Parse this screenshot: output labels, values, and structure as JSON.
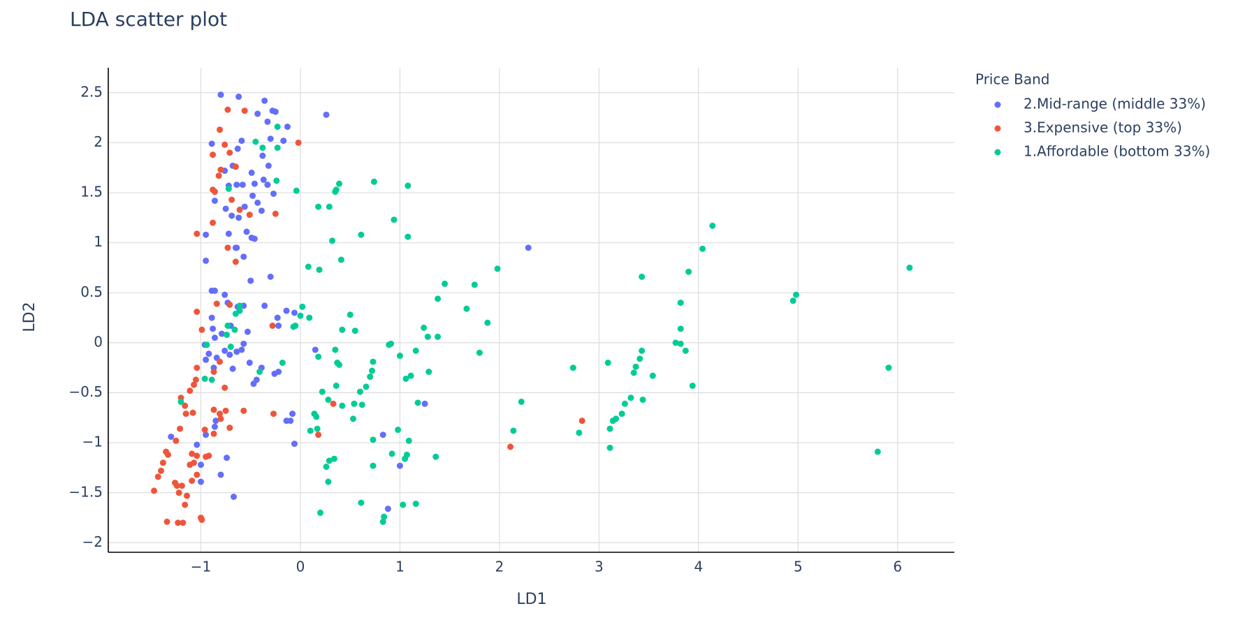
{
  "chart_data": {
    "type": "scatter",
    "title": "LDA scatter plot",
    "xaxis_title": "LD1",
    "yaxis_title": "LD2",
    "legend_title": "Price Band",
    "legend_position": "right",
    "grid": true,
    "xlim": [
      -1.93,
      6.57
    ],
    "ylim": [
      -2.095,
      2.75
    ],
    "xticks": [
      {
        "value": -1,
        "label": "−1"
      },
      0,
      1,
      2,
      3,
      4,
      5,
      6
    ],
    "yticks": [
      {
        "value": -2,
        "label": "−2"
      },
      {
        "value": -1.5,
        "label": "−1.5"
      },
      {
        "value": -1,
        "label": "−1"
      },
      {
        "value": -0.5,
        "label": "−0.5"
      },
      0,
      0.5,
      1,
      1.5,
      2,
      2.5
    ],
    "series": [
      {
        "name": "2.Mid-range (middle 33%)",
        "color": "#636efa",
        "x": [
          -0.8,
          -0.62,
          -0.36,
          -0.28,
          -0.25,
          0.26,
          -0.43,
          -0.33,
          -0.13,
          -0.89,
          -0.59,
          -0.63,
          -0.3,
          -0.17,
          -0.38,
          -0.32,
          -0.49,
          -0.68,
          -0.76,
          -0.72,
          -0.64,
          -0.58,
          -0.46,
          -0.37,
          -0.33,
          -0.27,
          -0.48,
          -0.56,
          -0.43,
          -0.39,
          -0.86,
          -0.75,
          -0.69,
          -0.62,
          -0.54,
          -0.49,
          -0.46,
          -0.95,
          -0.72,
          -0.65,
          -0.64,
          -0.57,
          -0.95,
          -0.3,
          -0.5,
          2.29,
          -0.89,
          -0.86,
          -0.76,
          -0.73,
          -0.63,
          -0.57,
          -0.36,
          -0.14,
          -0.06,
          -0.23,
          -0.22,
          -0.89,
          -0.88,
          -0.7,
          -0.53,
          -0.79,
          -0.86,
          -0.57,
          -0.96,
          -0.92,
          -0.76,
          -0.64,
          -0.59,
          -0.71,
          -0.95,
          -0.84,
          -0.87,
          -0.68,
          -0.51,
          -0.39,
          -0.44,
          -0.47,
          -0.26,
          -0.22,
          0.15,
          -0.08,
          -0.14,
          -0.1,
          -0.06,
          -0.85,
          -0.86,
          -0.95,
          -1.3,
          -1.04,
          -1.0,
          -1.0,
          -0.8,
          -0.74,
          -0.67,
          0.83,
          0.88,
          1.0,
          1.25
        ],
        "y": [
          2.48,
          2.46,
          2.42,
          2.32,
          2.31,
          2.28,
          2.29,
          2.21,
          2.16,
          1.99,
          2.02,
          1.94,
          2.04,
          2.02,
          1.87,
          1.77,
          1.7,
          1.77,
          1.72,
          1.57,
          1.58,
          1.58,
          1.59,
          1.63,
          1.58,
          1.49,
          1.47,
          1.36,
          1.4,
          1.32,
          1.42,
          1.34,
          1.27,
          1.25,
          1.11,
          1.05,
          1.04,
          1.08,
          1.09,
          0.95,
          0.95,
          0.86,
          0.82,
          0.66,
          0.62,
          0.95,
          0.52,
          0.52,
          0.48,
          0.4,
          0.36,
          0.37,
          0.37,
          0.32,
          0.3,
          0.25,
          0.17,
          0.25,
          0.14,
          0.17,
          0.11,
          0.09,
          0.05,
          -0.01,
          -0.02,
          -0.11,
          -0.08,
          -0.09,
          -0.07,
          -0.12,
          -0.17,
          -0.15,
          -0.25,
          -0.26,
          -0.2,
          -0.25,
          -0.37,
          -0.41,
          -0.31,
          -0.29,
          -0.07,
          -0.71,
          -0.78,
          -0.78,
          -1.01,
          -0.78,
          -0.84,
          -0.92,
          -0.94,
          -1.02,
          -1.22,
          -1.39,
          -1.32,
          -1.15,
          -1.54,
          -0.92,
          -1.66,
          -1.23,
          -0.61
        ]
      },
      {
        "name": "3.Expensive (top 33%)",
        "color": "#ef553b",
        "x": [
          -1.47,
          -1.43,
          -1.4,
          -1.38,
          -1.35,
          -1.33,
          -1.34,
          -1.26,
          -1.24,
          -1.22,
          -1.19,
          -1.16,
          -1.14,
          -1.23,
          -1.18,
          -1.25,
          -1.21,
          -1.2,
          -1.16,
          -1.15,
          -1.08,
          -1.11,
          -1.07,
          -1.05,
          -1.04,
          -1.09,
          -1.04,
          -1.07,
          -1.11,
          -1.09,
          -1.04,
          -1.0,
          -0.99,
          -0.96,
          -0.95,
          -0.92,
          -0.87,
          -0.87,
          -0.81,
          -0.8,
          -0.75,
          -0.71,
          -0.57,
          -0.76,
          -0.87,
          -0.81,
          -0.99,
          -1.04,
          -0.84,
          -0.71,
          -0.65,
          -0.73,
          -1.04,
          -0.88,
          -0.88,
          -0.86,
          -0.82,
          -0.8,
          -0.88,
          -0.71,
          -0.76,
          -0.81,
          -0.73,
          -0.56,
          -0.02,
          -0.25,
          -0.51,
          -0.61,
          -0.69,
          -0.65,
          -0.28,
          -0.27,
          0.18,
          0.33,
          2.11,
          2.83
        ],
        "y": [
          -1.48,
          -1.34,
          -1.28,
          -1.2,
          -1.09,
          -1.12,
          -1.79,
          -1.4,
          -1.43,
          -1.5,
          -1.43,
          -1.62,
          -1.53,
          -1.8,
          -1.8,
          -0.98,
          -0.86,
          -0.55,
          -0.63,
          -0.71,
          -0.7,
          -0.48,
          -0.42,
          -0.37,
          -0.25,
          -1.11,
          -1.13,
          -1.2,
          -1.22,
          -1.38,
          -1.32,
          -1.75,
          -1.77,
          -0.87,
          -1.14,
          -1.13,
          -0.91,
          -0.67,
          -0.71,
          -0.76,
          -0.68,
          -0.85,
          -0.68,
          -0.45,
          -0.29,
          -0.19,
          0.13,
          0.31,
          0.39,
          0.38,
          0.81,
          0.95,
          1.09,
          1.2,
          1.53,
          1.51,
          1.67,
          1.73,
          1.88,
          1.9,
          1.98,
          2.13,
          2.33,
          2.32,
          2.0,
          1.29,
          1.28,
          1.33,
          1.43,
          1.76,
          0.17,
          -0.71,
          -0.92,
          -0.61,
          -1.04,
          -0.78
        ]
      },
      {
        "name": "1.Affordable (bottom 33%)",
        "color": "#00cc96",
        "x": [
          6.12,
          5.91,
          5.8,
          4.98,
          4.95,
          4.14,
          4.04,
          3.9,
          3.94,
          3.82,
          3.82,
          3.77,
          3.82,
          3.87,
          3.43,
          3.43,
          3.41,
          3.37,
          3.35,
          3.54,
          3.09,
          3.44,
          3.32,
          3.26,
          3.23,
          3.17,
          3.14,
          3.11,
          3.11,
          2.74,
          2.8,
          2.22,
          2.14,
          1.98,
          1.88,
          1.8,
          1.75,
          1.67,
          1.45,
          1.38,
          1.38,
          1.28,
          1.24,
          1.29,
          1.36,
          1.18,
          1.16,
          1.11,
          1.06,
          1.09,
          1.07,
          1.05,
          1.03,
          1.16,
          0.98,
          0.92,
          1.0,
          0.91,
          0.89,
          0.84,
          0.83,
          0.73,
          0.73,
          0.73,
          0.72,
          0.7,
          0.66,
          0.61,
          0.62,
          0.6,
          0.54,
          0.53,
          0.55,
          0.5,
          0.42,
          0.42,
          0.36,
          0.35,
          0.37,
          0.39,
          0.34,
          0.29,
          0.28,
          0.26,
          0.28,
          0.22,
          0.18,
          0.2,
          0.17,
          0.16,
          0.14,
          0.1,
          0.09,
          0.0,
          0.02,
          -0.05,
          -0.07,
          -0.18,
          -0.41,
          -0.65,
          -0.61,
          -0.61,
          -0.73,
          -0.66,
          -0.74,
          -0.7,
          -0.89,
          -0.94,
          -1.2,
          0.74,
          1.08,
          0.39,
          0.36,
          0.35,
          -0.04,
          0.18,
          0.29,
          0.94,
          0.61,
          1.08,
          0.32,
          0.41,
          0.08,
          0.19,
          -0.23,
          -0.23,
          -0.38,
          -0.45,
          -0.24,
          -0.72,
          -0.96
        ],
        "y": [
          0.75,
          -0.25,
          -1.09,
          0.48,
          0.42,
          1.17,
          0.94,
          0.71,
          -0.43,
          0.4,
          0.14,
          0.0,
          -0.01,
          -0.08,
          0.66,
          -0.08,
          -0.16,
          -0.24,
          -0.3,
          -0.33,
          -0.2,
          -0.57,
          -0.55,
          -0.61,
          -0.71,
          -0.76,
          -0.78,
          -0.86,
          -1.05,
          -0.25,
          -0.9,
          -0.59,
          -0.88,
          0.74,
          0.2,
          -0.1,
          0.58,
          0.34,
          0.59,
          0.44,
          0.06,
          0.06,
          0.15,
          -0.29,
          -1.14,
          -0.6,
          -0.08,
          -0.33,
          -0.36,
          -0.98,
          -1.12,
          -1.16,
          -1.62,
          -1.61,
          -0.87,
          -1.11,
          -0.13,
          -0.01,
          -0.02,
          -1.74,
          -1.79,
          -1.23,
          -0.97,
          -0.19,
          -0.28,
          -0.34,
          -0.44,
          -1.6,
          -0.62,
          -0.49,
          -0.61,
          -0.76,
          0.12,
          0.28,
          0.13,
          -0.63,
          -0.43,
          -0.07,
          -0.2,
          -0.22,
          -1.16,
          -1.18,
          -1.39,
          -1.24,
          -0.57,
          -0.49,
          -0.14,
          -1.7,
          -0.86,
          -0.74,
          -0.71,
          -0.88,
          0.25,
          0.27,
          0.36,
          0.17,
          0.16,
          -0.2,
          -0.29,
          0.29,
          0.32,
          0.37,
          0.17,
          0.13,
          0.08,
          -0.04,
          -0.37,
          -0.02,
          -0.59,
          1.61,
          1.57,
          1.59,
          1.53,
          1.51,
          1.52,
          1.36,
          1.36,
          1.23,
          1.08,
          1.06,
          1.02,
          0.83,
          0.76,
          0.73,
          2.16,
          1.95,
          1.95,
          2.01,
          1.62,
          1.54,
          -0.36
        ]
      }
    ]
  }
}
